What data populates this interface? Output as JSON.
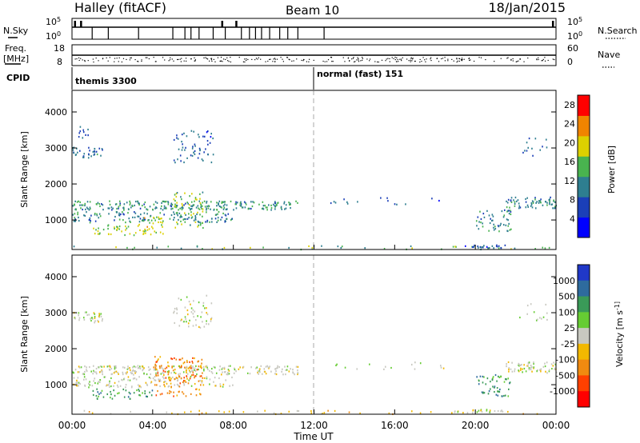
{
  "header": {
    "title": "Halley (fitACF)",
    "beam": "Beam 10",
    "date": "18/Jan/2015"
  },
  "panels": {
    "nsky": {
      "left_label": "N.Sky",
      "right_label": "N.Search",
      "left_ticks": [
        "10^5",
        "10^0"
      ],
      "right_ticks": [
        "10^5",
        "10^0"
      ]
    },
    "freq": {
      "left_label_1": "Freq.",
      "left_label_2": "[MHz]",
      "right_label": "Nave",
      "left_ticks": [
        "18",
        "8"
      ],
      "right_ticks": [
        "60",
        "0"
      ]
    },
    "cpid": {
      "label": "CPID",
      "modes": [
        {
          "name": "themis 3300",
          "start_hour": 0
        },
        {
          "name": "normal (fast) 151",
          "start_hour": 12
        }
      ]
    }
  },
  "chart_data": [
    {
      "type": "heatmap",
      "parameter": "power",
      "ylabel": "Slant Range [km]",
      "xlim": [
        0,
        24
      ],
      "ylim": [
        180,
        4600
      ],
      "yticks": [
        "1000",
        "2000",
        "3000",
        "4000"
      ],
      "colorbar_label": "Power [dB]",
      "colorbar_ticks": [
        "4",
        "8",
        "12",
        "16",
        "20",
        "24",
        "28"
      ],
      "colorbar_colors": [
        "#0000ff",
        "#1b3fb8",
        "#2e7e90",
        "#49b34f",
        "#dcd000",
        "#f08400",
        "#ff0000"
      ],
      "colorbar_range": [
        0,
        30
      ],
      "echo_regions": [
        {
          "t": [
            0.0,
            11.2
          ],
          "r": [
            1300,
            1550
          ],
          "density": 0.55,
          "level": 10
        },
        {
          "t": [
            0.0,
            8.0
          ],
          "r": [
            950,
            1250
          ],
          "density": 0.35,
          "level": 9
        },
        {
          "t": [
            0.0,
            1.5
          ],
          "r": [
            2750,
            3050
          ],
          "density": 0.5,
          "level": 7
        },
        {
          "t": [
            0.2,
            0.8
          ],
          "r": [
            3300,
            3700
          ],
          "density": 0.25,
          "level": 6
        },
        {
          "t": [
            5.0,
            7.0
          ],
          "r": [
            2600,
            3500
          ],
          "density": 0.2,
          "level": 6
        },
        {
          "t": [
            1.0,
            4.0
          ],
          "r": [
            600,
            900
          ],
          "density": 0.3,
          "level": 15
        },
        {
          "t": [
            3.5,
            4.5
          ],
          "r": [
            600,
            1100
          ],
          "density": 0.35,
          "level": 17
        },
        {
          "t": [
            5.0,
            6.5
          ],
          "r": [
            800,
            1800
          ],
          "density": 0.25,
          "level": 14
        },
        {
          "t": [
            0.0,
            24.0
          ],
          "r": [
            200,
            300
          ],
          "density": 0.12,
          "level": 12
        },
        {
          "t": [
            19.0,
            21.5
          ],
          "r": [
            240,
            330
          ],
          "density": 0.6,
          "level": 5
        },
        {
          "t": [
            20.0,
            21.8
          ],
          "r": [
            700,
            1300
          ],
          "density": 0.3,
          "level": 9
        },
        {
          "t": [
            21.5,
            24.0
          ],
          "r": [
            1350,
            1650
          ],
          "density": 0.55,
          "level": 9
        },
        {
          "t": [
            12.5,
            18.5
          ],
          "r": [
            1450,
            1650
          ],
          "density": 0.08,
          "level": 6
        },
        {
          "t": [
            22.0,
            23.6
          ],
          "r": [
            2800,
            3300
          ],
          "density": 0.1,
          "level": 6
        }
      ]
    },
    {
      "type": "heatmap",
      "parameter": "velocity",
      "ylabel": "Slant Range [km]",
      "xlabel": "Time UT",
      "xlim": [
        0,
        24
      ],
      "ylim": [
        180,
        4600
      ],
      "xticks": [
        "00:00",
        "04:00",
        "08:00",
        "12:00",
        "16:00",
        "20:00",
        "00:00"
      ],
      "yticks": [
        "1000",
        "2000",
        "3000",
        "4000"
      ],
      "colorbar_label": "Velocity [m s^-1]",
      "colorbar_ticks": [
        "1000",
        "500",
        "100",
        "25",
        "-25",
        "-100",
        "-500",
        "-1000"
      ],
      "colorbar_colors": [
        "#2038c8",
        "#2e6b9e",
        "#3a9a58",
        "#66cc33",
        "#c8c8c0",
        "#f2b800",
        "#f08a10",
        "#ff4000",
        "#ff0000"
      ],
      "echo_regions": [
        {
          "t": [
            0.0,
            11.2
          ],
          "r": [
            1300,
            1550
          ],
          "density": 0.55,
          "level": 4
        },
        {
          "t": [
            0.0,
            8.0
          ],
          "r": [
            950,
            1250
          ],
          "density": 0.35,
          "level": 4
        },
        {
          "t": [
            0.0,
            1.5
          ],
          "r": [
            2750,
            3050
          ],
          "density": 0.5,
          "level": 4
        },
        {
          "t": [
            5.0,
            7.0
          ],
          "r": [
            2600,
            3500
          ],
          "density": 0.2,
          "level": 4
        },
        {
          "t": [
            1.0,
            4.0
          ],
          "r": [
            600,
            900
          ],
          "density": 0.3,
          "level": 2
        },
        {
          "t": [
            4.0,
            6.5
          ],
          "r": [
            700,
            1800
          ],
          "density": 0.3,
          "level": 6
        },
        {
          "t": [
            0.0,
            24.0
          ],
          "r": [
            200,
            300
          ],
          "density": 0.12,
          "level": 5
        },
        {
          "t": [
            19.0,
            21.5
          ],
          "r": [
            240,
            330
          ],
          "density": 0.6,
          "level": 4
        },
        {
          "t": [
            20.0,
            21.8
          ],
          "r": [
            700,
            1300
          ],
          "density": 0.3,
          "level": 2
        },
        {
          "t": [
            21.5,
            24.0
          ],
          "r": [
            1350,
            1650
          ],
          "density": 0.55,
          "level": 4
        },
        {
          "t": [
            12.5,
            18.5
          ],
          "r": [
            1450,
            1650
          ],
          "density": 0.08,
          "level": 4
        },
        {
          "t": [
            22.0,
            23.6
          ],
          "r": [
            2800,
            3300
          ],
          "density": 0.1,
          "level": 4
        }
      ]
    }
  ]
}
